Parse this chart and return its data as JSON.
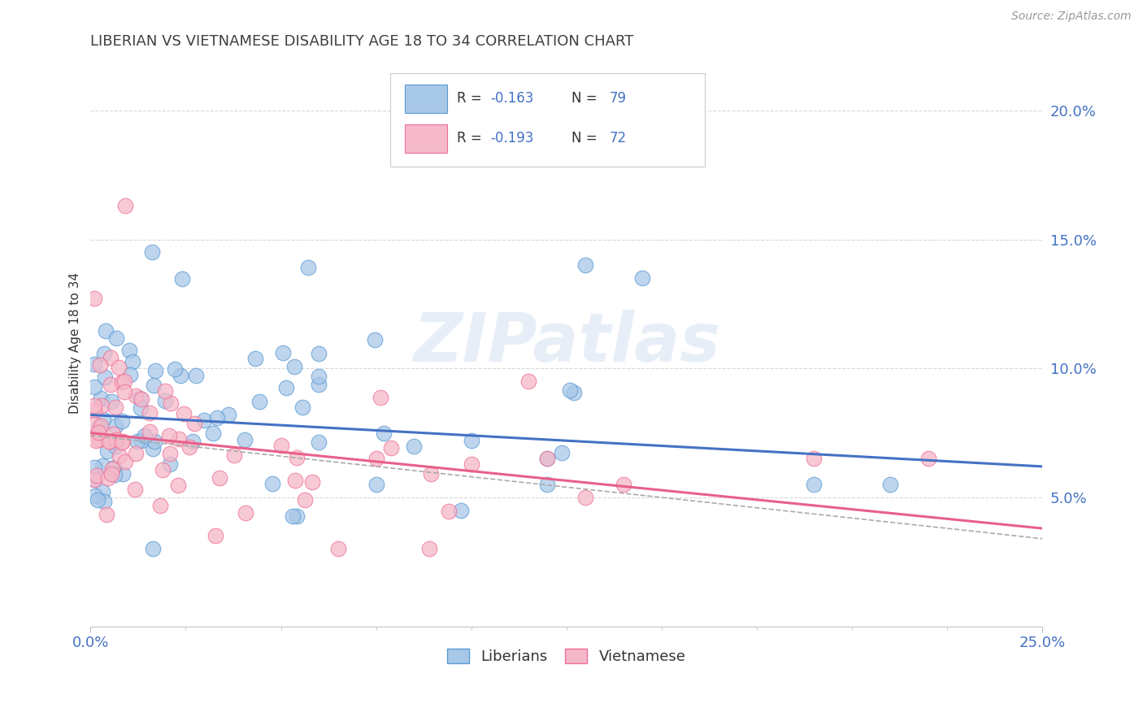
{
  "title": "LIBERIAN VS VIETNAMESE DISABILITY AGE 18 TO 34 CORRELATION CHART",
  "source_text": "Source: ZipAtlas.com",
  "ylabel": "Disability Age 18 to 34",
  "xlim": [
    0.0,
    0.25
  ],
  "ylim": [
    0.0,
    0.22
  ],
  "liberian_color": "#a8c8e8",
  "vietnamese_color": "#f5b8c8",
  "liberian_edge_color": "#5b9bd5",
  "vietnamese_edge_color": "#f07098",
  "liberian_line_color": "#4472c4",
  "vietnamese_line_color": "#e8608a",
  "legend_box_color": "#cccccc",
  "grid_color": "#d8d8d8",
  "title_color": "#404040",
  "axis_tick_color": "#4472c4",
  "text_color": "#333333",
  "watermark_text": "ZIPatlas",
  "watermark_color": "#d0dff0",
  "liberian_R": -0.163,
  "liberian_N": 79,
  "vietnamese_R": -0.193,
  "vietnamese_N": 72,
  "lib_line_y0": 0.082,
  "lib_line_y1": 0.062,
  "vie_line_y0": 0.075,
  "vie_line_y1": 0.038
}
